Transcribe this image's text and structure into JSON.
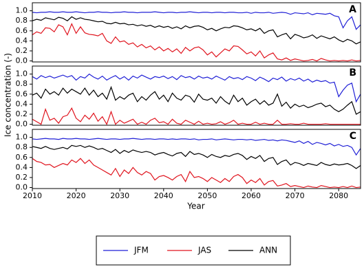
{
  "chart_data": [
    {
      "type": "line",
      "label": "A",
      "x": [
        2010,
        2011,
        2012,
        2013,
        2014,
        2015,
        2016,
        2017,
        2018,
        2019,
        2020,
        2021,
        2022,
        2023,
        2024,
        2025,
        2026,
        2027,
        2028,
        2029,
        2030,
        2031,
        2032,
        2033,
        2034,
        2035,
        2036,
        2037,
        2038,
        2039,
        2040,
        2041,
        2042,
        2043,
        2044,
        2045,
        2046,
        2047,
        2048,
        2049,
        2050,
        2051,
        2052,
        2053,
        2054,
        2055,
        2056,
        2057,
        2058,
        2059,
        2060,
        2061,
        2062,
        2063,
        2064,
        2065,
        2066,
        2067,
        2068,
        2069,
        2070,
        2071,
        2072,
        2073,
        2074,
        2075,
        2076,
        2077,
        2078,
        2079,
        2080,
        2081,
        2082,
        2083,
        2084,
        2085
      ],
      "xlim": [
        2010,
        2085
      ],
      "ylim": [
        -0.02,
        1.16
      ],
      "yticks": [
        {
          "value": 0,
          "label": "0.0"
        },
        0.2,
        0.4,
        0.6,
        0.8,
        {
          "value": 1,
          "label": "1.0"
        }
      ],
      "series": [
        {
          "name": "JFM",
          "color": "#1f1fd6",
          "values": [
            0.97,
            0.96,
            0.97,
            0.97,
            0.98,
            0.97,
            0.97,
            0.98,
            0.97,
            0.97,
            0.98,
            0.97,
            0.96,
            0.97,
            0.97,
            0.98,
            0.97,
            0.97,
            0.96,
            0.97,
            0.97,
            0.98,
            0.97,
            0.97,
            0.96,
            0.97,
            0.97,
            0.97,
            0.98,
            0.97,
            0.96,
            0.97,
            0.97,
            0.96,
            0.97,
            0.97,
            0.98,
            0.97,
            0.96,
            0.97,
            0.97,
            0.96,
            0.97,
            0.97,
            0.96,
            0.97,
            0.97,
            0.96,
            0.96,
            0.97,
            0.95,
            0.97,
            0.96,
            0.96,
            0.97,
            0.95,
            0.96,
            0.97,
            0.96,
            0.93,
            0.96,
            0.95,
            0.94,
            0.96,
            0.92,
            0.95,
            0.94,
            0.93,
            0.95,
            0.9,
            0.88,
            0.66,
            0.8,
            0.88,
            0.63,
            0.72
          ]
        },
        {
          "name": "JAS",
          "color": "#e0141e",
          "values": [
            0.52,
            0.58,
            0.55,
            0.66,
            0.65,
            0.58,
            0.72,
            0.68,
            0.52,
            0.74,
            0.55,
            0.68,
            0.56,
            0.53,
            0.52,
            0.5,
            0.55,
            0.4,
            0.35,
            0.48,
            0.38,
            0.4,
            0.33,
            0.36,
            0.28,
            0.33,
            0.26,
            0.3,
            0.22,
            0.28,
            0.2,
            0.25,
            0.18,
            0.24,
            0.15,
            0.27,
            0.2,
            0.26,
            0.28,
            0.22,
            0.12,
            0.18,
            0.08,
            0.16,
            0.24,
            0.2,
            0.3,
            0.29,
            0.22,
            0.14,
            0.18,
            0.1,
            0.2,
            0.06,
            0.12,
            0.16,
            0.04,
            0.02,
            0.06,
            0.01,
            0.04,
            0.02,
            0.0,
            0.01,
            0.03,
            0.0,
            0.05,
            0.02,
            0.0,
            0.01,
            0.0,
            0.01,
            0.0,
            0.02,
            0.0,
            0.01
          ]
        },
        {
          "name": "ANN",
          "color": "#000000",
          "values": [
            0.8,
            0.83,
            0.81,
            0.86,
            0.84,
            0.82,
            0.87,
            0.85,
            0.8,
            0.88,
            0.83,
            0.86,
            0.83,
            0.82,
            0.8,
            0.78,
            0.79,
            0.75,
            0.74,
            0.77,
            0.74,
            0.75,
            0.72,
            0.73,
            0.7,
            0.72,
            0.69,
            0.71,
            0.67,
            0.7,
            0.67,
            0.69,
            0.65,
            0.68,
            0.64,
            0.7,
            0.66,
            0.69,
            0.7,
            0.67,
            0.62,
            0.65,
            0.6,
            0.64,
            0.67,
            0.66,
            0.7,
            0.69,
            0.66,
            0.62,
            0.64,
            0.6,
            0.65,
            0.55,
            0.6,
            0.62,
            0.48,
            0.52,
            0.55,
            0.44,
            0.53,
            0.5,
            0.46,
            0.48,
            0.52,
            0.45,
            0.5,
            0.47,
            0.44,
            0.48,
            0.42,
            0.38,
            0.43,
            0.4,
            0.34,
            0.38
          ]
        }
      ]
    },
    {
      "type": "line",
      "label": "B",
      "ylabel": "Ice concentration (-)",
      "x": [
        2010,
        2011,
        2012,
        2013,
        2014,
        2015,
        2016,
        2017,
        2018,
        2019,
        2020,
        2021,
        2022,
        2023,
        2024,
        2025,
        2026,
        2027,
        2028,
        2029,
        2030,
        2031,
        2032,
        2033,
        2034,
        2035,
        2036,
        2037,
        2038,
        2039,
        2040,
        2041,
        2042,
        2043,
        2044,
        2045,
        2046,
        2047,
        2048,
        2049,
        2050,
        2051,
        2052,
        2053,
        2054,
        2055,
        2056,
        2057,
        2058,
        2059,
        2060,
        2061,
        2062,
        2063,
        2064,
        2065,
        2066,
        2067,
        2068,
        2069,
        2070,
        2071,
        2072,
        2073,
        2074,
        2075,
        2076,
        2077,
        2078,
        2079,
        2080,
        2081,
        2082,
        2083,
        2084,
        2085
      ],
      "xlim": [
        2010,
        2085
      ],
      "ylim": [
        -0.02,
        1.16
      ],
      "yticks": [
        {
          "value": 0,
          "label": "0.0"
        },
        0.2,
        0.4,
        0.6,
        0.8,
        {
          "value": 1,
          "label": "1.0"
        }
      ],
      "series": [
        {
          "name": "JFM",
          "color": "#1f1fd6",
          "values": [
            0.95,
            0.9,
            0.97,
            0.93,
            0.96,
            0.92,
            0.95,
            0.98,
            0.94,
            0.97,
            0.88,
            0.95,
            0.92,
            1.0,
            0.94,
            0.9,
            0.96,
            0.88,
            0.93,
            0.97,
            0.9,
            0.95,
            0.88,
            0.96,
            0.92,
            0.98,
            0.94,
            0.9,
            0.95,
            0.93,
            0.96,
            0.91,
            0.95,
            0.89,
            0.97,
            0.93,
            0.95,
            0.9,
            0.96,
            0.92,
            0.94,
            0.9,
            0.96,
            0.92,
            0.88,
            0.95,
            0.91,
            0.93,
            0.89,
            0.95,
            0.92,
            0.87,
            0.94,
            0.9,
            0.85,
            0.92,
            0.89,
            0.94,
            0.86,
            0.91,
            0.88,
            0.92,
            0.86,
            0.9,
            0.84,
            0.88,
            0.85,
            0.87,
            0.82,
            0.84,
            0.55,
            0.68,
            0.78,
            0.82,
            0.45,
            0.6
          ]
        },
        {
          "name": "JAS",
          "color": "#e0141e",
          "values": [
            0.1,
            0.05,
            0.0,
            0.3,
            0.08,
            0.12,
            0.02,
            0.15,
            0.18,
            0.32,
            0.12,
            0.05,
            0.18,
            0.1,
            0.22,
            0.06,
            0.15,
            0.0,
            0.25,
            0.0,
            0.08,
            0.02,
            0.06,
            0.1,
            0.0,
            0.04,
            0.0,
            0.08,
            0.12,
            0.03,
            0.05,
            0.0,
            0.1,
            0.02,
            0.0,
            0.08,
            0.04,
            0.0,
            0.06,
            0.0,
            0.02,
            0.0,
            0.01,
            0.05,
            0.0,
            0.03,
            0.08,
            0.0,
            0.02,
            0.0,
            0.0,
            0.04,
            0.0,
            0.02,
            0.0,
            0.0,
            0.08,
            0.0,
            0.0,
            0.01,
            0.0,
            0.0,
            0.02,
            0.0,
            0.0,
            0.0,
            0.0,
            0.01,
            0.0,
            0.0,
            0.0,
            0.0,
            0.0,
            0.0,
            0.0,
            0.0
          ]
        },
        {
          "name": "ANN",
          "color": "#000000",
          "values": [
            0.58,
            0.62,
            0.52,
            0.7,
            0.6,
            0.65,
            0.58,
            0.72,
            0.62,
            0.7,
            0.65,
            0.6,
            0.72,
            0.58,
            0.68,
            0.55,
            0.62,
            0.5,
            0.74,
            0.48,
            0.55,
            0.5,
            0.58,
            0.62,
            0.45,
            0.55,
            0.48,
            0.58,
            0.65,
            0.5,
            0.58,
            0.45,
            0.62,
            0.52,
            0.48,
            0.58,
            0.55,
            0.44,
            0.6,
            0.5,
            0.48,
            0.52,
            0.42,
            0.55,
            0.46,
            0.4,
            0.58,
            0.45,
            0.52,
            0.38,
            0.45,
            0.5,
            0.4,
            0.47,
            0.38,
            0.42,
            0.6,
            0.36,
            0.44,
            0.32,
            0.4,
            0.35,
            0.38,
            0.33,
            0.36,
            0.4,
            0.42,
            0.35,
            0.38,
            0.3,
            0.25,
            0.3,
            0.38,
            0.45,
            0.2,
            0.25
          ]
        }
      ]
    },
    {
      "type": "line",
      "label": "C",
      "xlabel": "Year",
      "x": [
        2010,
        2011,
        2012,
        2013,
        2014,
        2015,
        2016,
        2017,
        2018,
        2019,
        2020,
        2021,
        2022,
        2023,
        2024,
        2025,
        2026,
        2027,
        2028,
        2029,
        2030,
        2031,
        2032,
        2033,
        2034,
        2035,
        2036,
        2037,
        2038,
        2039,
        2040,
        2041,
        2042,
        2043,
        2044,
        2045,
        2046,
        2047,
        2048,
        2049,
        2050,
        2051,
        2052,
        2053,
        2054,
        2055,
        2056,
        2057,
        2058,
        2059,
        2060,
        2061,
        2062,
        2063,
        2064,
        2065,
        2066,
        2067,
        2068,
        2069,
        2070,
        2071,
        2072,
        2073,
        2074,
        2075,
        2076,
        2077,
        2078,
        2079,
        2080,
        2081,
        2082,
        2083,
        2084,
        2085
      ],
      "xlim": [
        2010,
        2085
      ],
      "xticks": [
        2010,
        2020,
        2030,
        2040,
        2050,
        2060,
        2070,
        2080
      ],
      "ylim": [
        -0.02,
        1.16
      ],
      "yticks": [
        {
          "value": 0,
          "label": "0.0"
        },
        0.2,
        0.4,
        0.6,
        0.8,
        {
          "value": 1,
          "label": "1.0"
        }
      ],
      "series": [
        {
          "name": "JFM",
          "color": "#1f1fd6",
          "values": [
            0.97,
            0.96,
            0.97,
            0.98,
            0.97,
            0.97,
            0.96,
            0.98,
            0.97,
            0.97,
            0.98,
            0.97,
            0.97,
            0.96,
            0.97,
            0.98,
            0.97,
            0.96,
            0.97,
            0.97,
            0.96,
            0.97,
            0.97,
            0.98,
            0.97,
            0.96,
            0.97,
            0.97,
            0.96,
            0.97,
            0.97,
            0.96,
            0.97,
            0.96,
            0.97,
            0.97,
            0.96,
            0.97,
            0.95,
            0.96,
            0.96,
            0.97,
            0.95,
            0.96,
            0.97,
            0.96,
            0.95,
            0.96,
            0.96,
            0.95,
            0.96,
            0.94,
            0.95,
            0.96,
            0.94,
            0.95,
            0.93,
            0.95,
            0.94,
            0.92,
            0.9,
            0.93,
            0.88,
            0.92,
            0.86,
            0.9,
            0.88,
            0.85,
            0.88,
            0.83,
            0.86,
            0.82,
            0.84,
            0.8,
            0.65,
            0.78
          ]
        },
        {
          "name": "JAS",
          "color": "#e0141e",
          "values": [
            0.58,
            0.52,
            0.5,
            0.45,
            0.46,
            0.4,
            0.44,
            0.48,
            0.45,
            0.55,
            0.5,
            0.58,
            0.48,
            0.55,
            0.45,
            0.4,
            0.35,
            0.3,
            0.25,
            0.38,
            0.22,
            0.35,
            0.28,
            0.4,
            0.3,
            0.25,
            0.32,
            0.28,
            0.15,
            0.22,
            0.24,
            0.2,
            0.15,
            0.22,
            0.26,
            0.12,
            0.32,
            0.2,
            0.22,
            0.18,
            0.12,
            0.2,
            0.15,
            0.1,
            0.18,
            0.12,
            0.22,
            0.26,
            0.2,
            0.08,
            0.15,
            0.1,
            0.18,
            0.05,
            0.12,
            0.14,
            0.03,
            0.05,
            0.08,
            0.02,
            0.04,
            0.02,
            0.0,
            0.03,
            0.01,
            0.0,
            0.04,
            0.02,
            0.0,
            0.01,
            0.0,
            0.02,
            0.0,
            0.03,
            0.0,
            0.01
          ]
        },
        {
          "name": "ANN",
          "color": "#000000",
          "values": [
            0.82,
            0.8,
            0.78,
            0.82,
            0.78,
            0.76,
            0.78,
            0.8,
            0.77,
            0.84,
            0.82,
            0.84,
            0.8,
            0.83,
            0.8,
            0.76,
            0.78,
            0.74,
            0.7,
            0.76,
            0.68,
            0.74,
            0.7,
            0.75,
            0.72,
            0.7,
            0.72,
            0.7,
            0.65,
            0.68,
            0.7,
            0.66,
            0.63,
            0.68,
            0.7,
            0.62,
            0.72,
            0.66,
            0.68,
            0.65,
            0.6,
            0.66,
            0.62,
            0.6,
            0.64,
            0.62,
            0.66,
            0.68,
            0.64,
            0.56,
            0.62,
            0.58,
            0.64,
            0.52,
            0.58,
            0.6,
            0.46,
            0.52,
            0.55,
            0.45,
            0.5,
            0.48,
            0.44,
            0.48,
            0.46,
            0.44,
            0.5,
            0.46,
            0.44,
            0.47,
            0.45,
            0.46,
            0.48,
            0.44,
            0.38,
            0.44
          ]
        }
      ]
    }
  ]
}
